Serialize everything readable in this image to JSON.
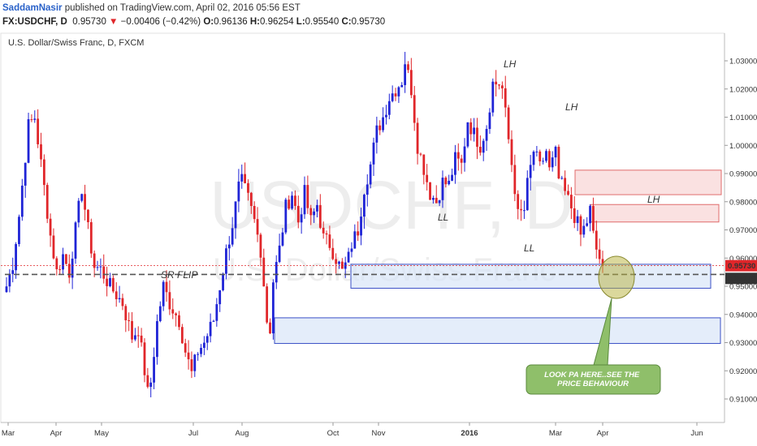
{
  "header": {
    "author": "SaddamNasir",
    "published": "published on TradingView.com, April 02, 2016 05:56 EST",
    "symbol": "FX:USDCHF, D",
    "last_price": "0.95730",
    "change_arrow": "▼",
    "change": "−0.00406 (−0.42%)",
    "open_label": "O:",
    "open": "0.96136",
    "high_label": "H:",
    "high": "0.96254",
    "low_label": "L:",
    "low": "0.95540",
    "close_label": "C:",
    "close": "0.95730"
  },
  "chart_data": {
    "type": "candlestick",
    "title": "U.S. Dollar/Swiss Franc, D, FXCM",
    "watermark": "USDCHF, D",
    "watermark_sub": "U.S. Dollar/Swiss Franc",
    "ylim": [
      0.9,
      1.035
    ],
    "y_ticks": [
      "0.91000",
      "0.92000",
      "0.93000",
      "0.94000",
      "0.95000",
      "0.96000",
      "0.97000",
      "0.98000",
      "0.99000",
      "1.00000",
      "1.01000",
      "1.02000",
      "1.03000"
    ],
    "x_ticks": [
      "Mar",
      "Apr",
      "May",
      "Jul",
      "Aug",
      "Oct",
      "Nov",
      "2016",
      "Mar",
      "Apr",
      "Jun"
    ],
    "price_labels": [
      {
        "value": 0.9573,
        "text": "0.95730",
        "color": "#e0262a"
      },
      {
        "value": 0.95278,
        "text": "0.95278",
        "color": "#333333"
      }
    ],
    "price_line_color": "#e0262a",
    "up_color": "#1f24d6",
    "down_color": "#e0262a",
    "key_level": 0.9542,
    "annotations": [
      "LH",
      "LH",
      "LH",
      "LL",
      "LL",
      "SR FLIP"
    ],
    "callout": "LOOK PA HERE..SEE THE PRICE BEHAVIOUR",
    "zones": [
      {
        "kind": "supply",
        "from": 0.9825,
        "to": 0.9912,
        "color": "#f6c9c9"
      },
      {
        "kind": "supply",
        "from": 0.9728,
        "to": 0.979,
        "color": "#f6c9c9"
      },
      {
        "kind": "demand",
        "from": 0.9493,
        "to": 0.9578,
        "color": "#d6e3f7"
      },
      {
        "kind": "demand",
        "from": 0.9297,
        "to": 0.9388,
        "color": "#d6e3f7"
      }
    ],
    "path": [
      [
        0,
        0.95
      ],
      [
        2,
        0.958
      ],
      [
        4,
        0.975
      ],
      [
        7,
        1.007
      ],
      [
        9,
        1.01
      ],
      [
        12,
        0.985
      ],
      [
        14,
        0.968
      ],
      [
        16,
        0.955
      ],
      [
        18,
        0.961
      ],
      [
        20,
        0.955
      ],
      [
        24,
        0.985
      ],
      [
        26,
        0.97
      ],
      [
        28,
        0.957
      ],
      [
        30,
        0.956
      ],
      [
        33,
        0.95
      ],
      [
        37,
        0.944
      ],
      [
        40,
        0.932
      ],
      [
        42,
        0.935
      ],
      [
        44,
        0.92
      ],
      [
        45,
        0.912
      ],
      [
        46,
        0.916
      ],
      [
        48,
        0.937
      ],
      [
        50,
        0.95
      ],
      [
        52,
        0.944
      ],
      [
        55,
        0.938
      ],
      [
        57,
        0.927
      ],
      [
        59,
        0.919
      ],
      [
        61,
        0.927
      ],
      [
        63,
        0.93
      ],
      [
        66,
        0.938
      ],
      [
        68,
        0.95
      ],
      [
        70,
        0.962
      ],
      [
        72,
        0.972
      ],
      [
        74,
        0.985
      ],
      [
        75,
        0.987
      ],
      [
        77,
        0.981
      ],
      [
        79,
        0.973
      ],
      [
        81,
        0.963
      ],
      [
        82,
        0.951
      ],
      [
        83,
        0.938
      ],
      [
        84,
        0.935
      ],
      [
        85,
        0.952
      ],
      [
        87,
        0.963
      ],
      [
        89,
        0.978
      ],
      [
        91,
        0.983
      ],
      [
        93,
        0.973
      ],
      [
        95,
        0.983
      ],
      [
        97,
        0.973
      ],
      [
        99,
        0.979
      ],
      [
        101,
        0.967
      ],
      [
        103,
        0.965
      ],
      [
        105,
        0.96
      ],
      [
        107,
        0.955
      ],
      [
        109,
        0.96
      ],
      [
        110,
        0.965
      ],
      [
        112,
        0.97
      ],
      [
        114,
        0.985
      ],
      [
        116,
        0.993
      ],
      [
        118,
        1.005
      ],
      [
        120,
        1.01
      ],
      [
        122,
        1.017
      ],
      [
        124,
        1.02
      ],
      [
        126,
        1.023
      ],
      [
        127,
        1.03
      ],
      [
        129,
        1.02
      ],
      [
        131,
        1.0
      ],
      [
        133,
        0.992
      ],
      [
        135,
        0.983
      ],
      [
        137,
        0.98
      ],
      [
        139,
        0.987
      ],
      [
        141,
        0.986
      ],
      [
        143,
        0.995
      ],
      [
        145,
        0.993
      ],
      [
        147,
        1.009
      ],
      [
        149,
        1.004
      ],
      [
        151,
        1.0
      ],
      [
        153,
        1.007
      ],
      [
        155,
        1.022
      ],
      [
        157,
        1.022
      ],
      [
        158,
        1.02
      ],
      [
        160,
        1.002
      ],
      [
        162,
        0.985
      ],
      [
        163,
        0.975
      ],
      [
        165,
        0.977
      ],
      [
        166,
        0.986
      ],
      [
        168,
        0.998
      ],
      [
        170,
        0.992
      ],
      [
        172,
        0.998
      ],
      [
        173,
        0.991
      ],
      [
        175,
        0.997
      ],
      [
        176,
        0.988
      ],
      [
        178,
        0.983
      ],
      [
        180,
        0.978
      ],
      [
        182,
        0.972
      ],
      [
        183,
        0.968
      ],
      [
        185,
        0.973
      ],
      [
        186,
        0.977
      ],
      [
        187,
        0.968
      ],
      [
        188,
        0.963
      ],
      [
        190,
        0.957
      ]
    ]
  }
}
